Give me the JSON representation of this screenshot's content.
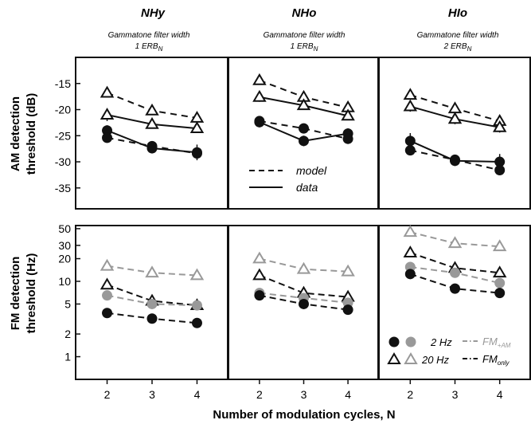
{
  "chart_data": {
    "type": "line",
    "columns": [
      {
        "title": "NHy",
        "subtitle_line1": "Gammatone filter width",
        "subtitle_line2": "1 ERB",
        "subtitle_sub": "N"
      },
      {
        "title": "NHo",
        "subtitle_line1": "Gammatone filter width",
        "subtitle_line2": "1 ERB",
        "subtitle_sub": "N"
      },
      {
        "title": "HIo",
        "subtitle_line1": "Gammatone filter width",
        "subtitle_line2": "2 ERB",
        "subtitle_sub": "N"
      }
    ],
    "x": [
      2,
      3,
      4
    ],
    "xlabel": "Number of modulation cycles, N",
    "xticks": [
      "2",
      "3",
      "4"
    ],
    "xlim": [
      1.3,
      4.7
    ],
    "am": {
      "ylabel_line1": "AM detection",
      "ylabel_line2": "threshold (dB)",
      "ylim": [
        -39,
        -10
      ],
      "yticks": [
        -35,
        -30,
        -25,
        -20,
        -15
      ],
      "ytick_labels": [
        "-35",
        "-30",
        "-25",
        "-20",
        "-15"
      ],
      "legend": {
        "model": "model",
        "data": "data"
      },
      "panels": [
        {
          "series": [
            {
              "rate": "20 Hz",
              "kind": "model",
              "values": [
                -16.8,
                -20.2,
                -21.6
              ],
              "errors": [
                0,
                0,
                0
              ]
            },
            {
              "rate": "20 Hz",
              "kind": "data",
              "values": [
                -21.0,
                -22.8,
                -23.6
              ],
              "errors": [
                1.2,
                0.8,
                0.8
              ]
            },
            {
              "rate": "2 Hz",
              "kind": "data",
              "values": [
                -24.0,
                -27.4,
                -28.2
              ],
              "errors": [
                1.0,
                1.0,
                1.5
              ]
            },
            {
              "rate": "2 Hz",
              "kind": "model",
              "values": [
                -25.4,
                -27.0,
                -28.4
              ],
              "errors": [
                0,
                0,
                0
              ]
            }
          ]
        },
        {
          "series": [
            {
              "rate": "20 Hz",
              "kind": "model",
              "values": [
                -14.4,
                -17.6,
                -19.6
              ],
              "errors": [
                0,
                0,
                0
              ]
            },
            {
              "rate": "20 Hz",
              "kind": "data",
              "values": [
                -17.6,
                -19.2,
                -21.2
              ],
              "errors": [
                0.9,
                0.8,
                0.8
              ]
            },
            {
              "rate": "2 Hz",
              "kind": "data",
              "values": [
                -22.4,
                -26.0,
                -24.6
              ],
              "errors": [
                1.0,
                1.0,
                1.0
              ]
            },
            {
              "rate": "2 Hz",
              "kind": "model",
              "values": [
                -22.2,
                -23.6,
                -25.6
              ],
              "errors": [
                0,
                0,
                0
              ]
            }
          ]
        },
        {
          "series": [
            {
              "rate": "20 Hz",
              "kind": "model",
              "values": [
                -17.2,
                -19.8,
                -22.2
              ],
              "errors": [
                0,
                0,
                0
              ]
            },
            {
              "rate": "20 Hz",
              "kind": "data",
              "values": [
                -19.4,
                -21.8,
                -23.4
              ],
              "errors": [
                1.0,
                1.0,
                1.0
              ]
            },
            {
              "rate": "2 Hz",
              "kind": "data",
              "values": [
                -26.0,
                -29.8,
                -30.0
              ],
              "errors": [
                1.5,
                1.0,
                1.5
              ]
            },
            {
              "rate": "2 Hz",
              "kind": "model",
              "values": [
                -27.8,
                -29.6,
                -31.6
              ],
              "errors": [
                0,
                0,
                0
              ]
            }
          ]
        }
      ]
    },
    "fm": {
      "ylabel_line1": "FM detection",
      "ylabel_line2": "threshold (Hz)",
      "scale": "log",
      "ylim": [
        0.5,
        55
      ],
      "yticks": [
        1,
        2,
        5,
        10,
        20,
        30,
        50
      ],
      "ytick_labels": [
        "1",
        "2",
        "5",
        "10",
        "20",
        "30",
        "50"
      ],
      "legend": {
        "rate_2hz": "2 Hz",
        "rate_20hz": "20 Hz",
        "fm_am_main": "FM",
        "fm_am_sub": "+AM",
        "fm_only_main": "FM",
        "fm_only_sub": "only"
      },
      "colors": {
        "fm_only": "#111111",
        "fm_am": "#999999"
      },
      "panels": [
        {
          "series": [
            {
              "rate": "20 Hz",
              "cond": "fm_am",
              "values": [
                16,
                13,
                12
              ]
            },
            {
              "rate": "20 Hz",
              "cond": "fm_only",
              "values": [
                9,
                5.5,
                4.8
              ]
            },
            {
              "rate": "2 Hz",
              "cond": "fm_am",
              "values": [
                6.5,
                5,
                4.8
              ]
            },
            {
              "rate": "2 Hz",
              "cond": "fm_only",
              "values": [
                3.8,
                3.2,
                2.8
              ]
            }
          ]
        },
        {
          "series": [
            {
              "rate": "20 Hz",
              "cond": "fm_am",
              "values": [
                20,
                14.5,
                13.5
              ]
            },
            {
              "rate": "20 Hz",
              "cond": "fm_only",
              "values": [
                12,
                7,
                6.2
              ]
            },
            {
              "rate": "2 Hz",
              "cond": "fm_am",
              "values": [
                7,
                6,
                5.2
              ]
            },
            {
              "rate": "2 Hz",
              "cond": "fm_only",
              "values": [
                6.5,
                5,
                4.2
              ]
            }
          ]
        },
        {
          "series": [
            {
              "rate": "20 Hz",
              "cond": "fm_am",
              "values": [
                45,
                32,
                29
              ]
            },
            {
              "rate": "20 Hz",
              "cond": "fm_only",
              "values": [
                24,
                15,
                13
              ]
            },
            {
              "rate": "2 Hz",
              "cond": "fm_am",
              "values": [
                15.5,
                13,
                9.5
              ]
            },
            {
              "rate": "2 Hz",
              "cond": "fm_only",
              "values": [
                12.5,
                8,
                7
              ]
            }
          ]
        }
      ]
    }
  }
}
